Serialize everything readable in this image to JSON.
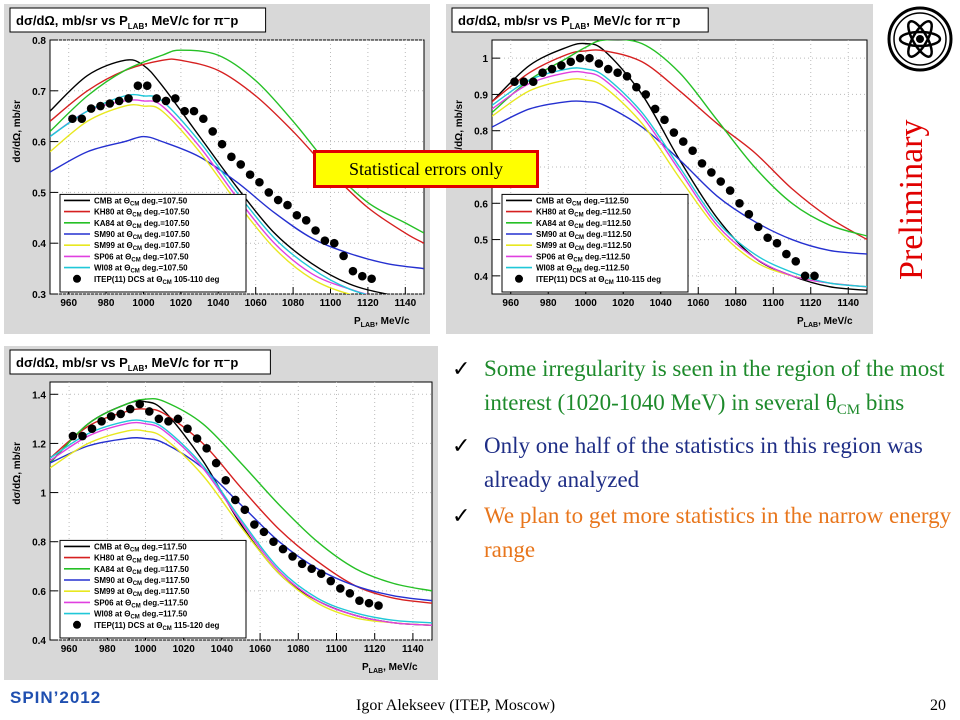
{
  "slide": {
    "stat_note": "Statistical errors only",
    "preliminary": "Preliminary",
    "bullets": [
      {
        "text": "Some irregularity is seen in the region of the most interest (1020-1040 MeV) in several θ",
        "sub": "CM",
        "tail": " bins",
        "color": "#1d8a2b"
      },
      {
        "text": "Only one half of the statistics in this region was already analyzed",
        "sub": "",
        "tail": "",
        "color": "#1f2e86"
      },
      {
        "text": "We plan to get more statistics in the narrow energy range",
        "sub": "",
        "tail": "",
        "color": "#e8761c"
      }
    ],
    "footer_left": "SPIN’2012",
    "footer_center": "Igor Alekseev (ITEP, Moscow)",
    "page_number": "20"
  },
  "chart_data": [
    {
      "type": "line",
      "title": "dσ/dΩ, mb/sr vs P",
      "title_sub": "LAB",
      "title_tail": ", MeV/c for π⁻p",
      "ylabel": "dσ/dΩ, mb/sr",
      "xlabel": "P",
      "xlabel_sub": "LAB",
      "xlabel_tail": ", MeV/c",
      "xlim": [
        950,
        1150
      ],
      "ylim": [
        0.3,
        0.8
      ],
      "xticks": [
        960,
        980,
        1000,
        1020,
        1040,
        1060,
        1080,
        1100,
        1120,
        1140
      ],
      "yticks": [
        0.3,
        0.4,
        0.5,
        0.6,
        0.7,
        0.8
      ],
      "ytick_labels": [
        "0.3",
        "0.4",
        "0.5",
        "0.6",
        "0.7",
        "0.8"
      ],
      "grid": true,
      "legend_position": "bottom-left",
      "series": [
        {
          "name": "CMB  at Θ",
          "angle_label": " deg.=107.50",
          "color": "#000000",
          "x": [
            950,
            970,
            990,
            1000,
            1010,
            1030,
            1050,
            1070,
            1090,
            1110,
            1130,
            1150
          ],
          "y": [
            0.66,
            0.73,
            0.76,
            0.75,
            0.71,
            0.61,
            0.51,
            0.42,
            0.36,
            0.32,
            0.3,
            0.29
          ]
        },
        {
          "name": "KH80  at Θ",
          "angle_label": " deg.=107.50",
          "color": "#d62020",
          "x": [
            950,
            970,
            990,
            1010,
            1020,
            1040,
            1060,
            1080,
            1100,
            1120,
            1140,
            1150
          ],
          "y": [
            0.64,
            0.7,
            0.74,
            0.76,
            0.76,
            0.74,
            0.69,
            0.62,
            0.54,
            0.47,
            0.42,
            0.4
          ]
        },
        {
          "name": "KA84  at Θ",
          "angle_label": " deg.=107.50",
          "color": "#26c026",
          "x": [
            950,
            970,
            990,
            1010,
            1020,
            1040,
            1060,
            1080,
            1100,
            1120,
            1140,
            1150
          ],
          "y": [
            0.62,
            0.69,
            0.74,
            0.77,
            0.78,
            0.77,
            0.72,
            0.64,
            0.55,
            0.48,
            0.44,
            0.42
          ]
        },
        {
          "name": "SM90  at Θ",
          "angle_label": " deg.=107.50",
          "color": "#2530d0",
          "x": [
            950,
            970,
            990,
            1000,
            1010,
            1030,
            1050,
            1070,
            1090,
            1110,
            1130,
            1150
          ],
          "y": [
            0.54,
            0.58,
            0.6,
            0.61,
            0.6,
            0.57,
            0.52,
            0.46,
            0.41,
            0.38,
            0.36,
            0.35
          ]
        },
        {
          "name": "SM99  at Θ",
          "angle_label": " deg.=107.50",
          "color": "#e8e820",
          "x": [
            950,
            970,
            990,
            1000,
            1010,
            1030,
            1050,
            1070,
            1090,
            1110,
            1130,
            1150
          ],
          "y": [
            0.58,
            0.64,
            0.67,
            0.67,
            0.66,
            0.58,
            0.48,
            0.39,
            0.33,
            0.3,
            0.29,
            0.28
          ]
        },
        {
          "name": "SP06  at Θ",
          "angle_label": " deg.=107.50",
          "color": "#e040e0",
          "x": [
            950,
            970,
            990,
            1000,
            1010,
            1030,
            1050,
            1070,
            1090,
            1110,
            1130,
            1150
          ],
          "y": [
            0.61,
            0.66,
            0.68,
            0.68,
            0.67,
            0.59,
            0.49,
            0.4,
            0.34,
            0.31,
            0.29,
            0.28
          ]
        },
        {
          "name": "WI08  at Θ",
          "angle_label": " deg.=107.50",
          "color": "#20c8d8",
          "x": [
            950,
            970,
            990,
            1000,
            1010,
            1030,
            1050,
            1070,
            1090,
            1110,
            1130,
            1150
          ],
          "y": [
            0.61,
            0.66,
            0.69,
            0.69,
            0.68,
            0.6,
            0.5,
            0.41,
            0.35,
            0.31,
            0.29,
            0.28
          ]
        }
      ],
      "points_label": "ITEP(11) DCS at Θ",
      "points_label_tail": " 105-110 deg",
      "points": {
        "x": [
          962,
          967,
          972,
          977,
          982,
          987,
          992,
          997,
          1002,
          1007,
          1012,
          1017,
          1022,
          1027,
          1032,
          1037,
          1042,
          1047,
          1052,
          1057,
          1062,
          1067,
          1072,
          1077,
          1082,
          1087,
          1092,
          1097,
          1102,
          1107,
          1112,
          1117,
          1122
        ],
        "y": [
          0.645,
          0.645,
          0.665,
          0.67,
          0.675,
          0.68,
          0.685,
          0.71,
          0.71,
          0.685,
          0.68,
          0.685,
          0.66,
          0.66,
          0.645,
          0.62,
          0.595,
          0.57,
          0.555,
          0.535,
          0.52,
          0.5,
          0.485,
          0.475,
          0.455,
          0.445,
          0.425,
          0.405,
          0.4,
          0.375,
          0.345,
          0.335,
          0.33
        ]
      }
    },
    {
      "type": "line",
      "title": "dσ/dΩ, mb/sr vs P",
      "title_sub": "LAB",
      "title_tail": ", MeV/c for π⁻p",
      "ylabel": "dσ/dΩ, mb/sr",
      "xlabel": "P",
      "xlabel_sub": "LAB",
      "xlabel_tail": ", MeV/c",
      "xlim": [
        950,
        1150
      ],
      "ylim": [
        0.35,
        1.05
      ],
      "xticks": [
        960,
        980,
        1000,
        1020,
        1040,
        1060,
        1080,
        1100,
        1120,
        1140
      ],
      "yticks": [
        0.4,
        0.5,
        0.6,
        0.7,
        0.8,
        0.9,
        1.0
      ],
      "ytick_labels": [
        "0.4",
        "0.5",
        "0.6",
        "0.7",
        "0.8",
        "0.9",
        "1"
      ],
      "grid": true,
      "legend_position": "bottom-left",
      "series": [
        {
          "name": "CMB  at Θ",
          "angle_label": " deg.=112.50",
          "color": "#000000",
          "x": [
            950,
            970,
            990,
            1000,
            1010,
            1030,
            1050,
            1070,
            1090,
            1110,
            1130,
            1150
          ],
          "y": [
            0.88,
            0.98,
            1.03,
            1.04,
            1.02,
            0.9,
            0.72,
            0.56,
            0.45,
            0.4,
            0.37,
            0.36
          ]
        },
        {
          "name": "KH80  at Θ",
          "angle_label": " deg.=112.50",
          "color": "#d62020",
          "x": [
            950,
            970,
            990,
            1000,
            1010,
            1030,
            1050,
            1070,
            1090,
            1110,
            1130,
            1150
          ],
          "y": [
            0.88,
            0.96,
            1.01,
            1.02,
            1.02,
            0.99,
            0.91,
            0.82,
            0.74,
            0.64,
            0.56,
            0.5
          ]
        },
        {
          "name": "KA84  at Θ",
          "angle_label": " deg.=112.50",
          "color": "#26c026",
          "x": [
            950,
            970,
            990,
            1000,
            1010,
            1030,
            1050,
            1070,
            1090,
            1110,
            1130,
            1150
          ],
          "y": [
            0.85,
            0.94,
            1.0,
            1.03,
            1.05,
            1.04,
            0.96,
            0.83,
            0.7,
            0.6,
            0.54,
            0.51
          ]
        },
        {
          "name": "SM90  at Θ",
          "angle_label": " deg.=112.50",
          "color": "#2530d0",
          "x": [
            950,
            970,
            990,
            1000,
            1010,
            1030,
            1050,
            1070,
            1090,
            1110,
            1130,
            1150
          ],
          "y": [
            0.81,
            0.86,
            0.88,
            0.88,
            0.87,
            0.81,
            0.72,
            0.62,
            0.55,
            0.5,
            0.47,
            0.46
          ]
        },
        {
          "name": "SM99  at Θ",
          "angle_label": " deg.=112.50",
          "color": "#e8e820",
          "x": [
            950,
            970,
            990,
            1000,
            1010,
            1030,
            1050,
            1070,
            1090,
            1110,
            1130,
            1150
          ],
          "y": [
            0.84,
            0.91,
            0.94,
            0.94,
            0.92,
            0.82,
            0.67,
            0.53,
            0.44,
            0.4,
            0.38,
            0.37
          ]
        },
        {
          "name": "SP06  at Θ",
          "angle_label": " deg.=112.50",
          "color": "#e040e0",
          "x": [
            950,
            970,
            990,
            1000,
            1010,
            1030,
            1050,
            1070,
            1090,
            1110,
            1130,
            1150
          ],
          "y": [
            0.86,
            0.93,
            0.96,
            0.96,
            0.94,
            0.84,
            0.69,
            0.54,
            0.45,
            0.4,
            0.38,
            0.37
          ]
        },
        {
          "name": "WI08  at Θ",
          "angle_label": " deg.=112.50",
          "color": "#20c8d8",
          "x": [
            950,
            970,
            990,
            1000,
            1010,
            1030,
            1050,
            1070,
            1090,
            1110,
            1130,
            1150
          ],
          "y": [
            0.87,
            0.94,
            0.97,
            0.97,
            0.95,
            0.85,
            0.7,
            0.55,
            0.46,
            0.41,
            0.38,
            0.37
          ]
        }
      ],
      "points_label": "ITEP(11) DCS at Θ",
      "points_label_tail": " 110-115 deg",
      "points": {
        "x": [
          962,
          967,
          972,
          977,
          982,
          987,
          992,
          997,
          1002,
          1007,
          1012,
          1017,
          1022,
          1027,
          1032,
          1037,
          1042,
          1047,
          1052,
          1057,
          1062,
          1067,
          1072,
          1077,
          1082,
          1087,
          1092,
          1097,
          1102,
          1107,
          1112,
          1117,
          1122
        ],
        "y": [
          0.935,
          0.935,
          0.935,
          0.96,
          0.97,
          0.98,
          0.99,
          1.0,
          1.0,
          0.985,
          0.97,
          0.96,
          0.95,
          0.92,
          0.9,
          0.86,
          0.83,
          0.795,
          0.77,
          0.745,
          0.71,
          0.685,
          0.66,
          0.635,
          0.6,
          0.57,
          0.535,
          0.505,
          0.49,
          0.46,
          0.44,
          0.4,
          0.4
        ]
      }
    },
    {
      "type": "line",
      "title": "dσ/dΩ, mb/sr vs P",
      "title_sub": "LAB",
      "title_tail": ", MeV/c for π⁻p",
      "ylabel": "dσ/dΩ, mb/sr",
      "xlabel": "P",
      "xlabel_sub": "LAB",
      "xlabel_tail": ", MeV/c",
      "xlim": [
        950,
        1150
      ],
      "ylim": [
        0.4,
        1.45
      ],
      "xticks": [
        960,
        980,
        1000,
        1020,
        1040,
        1060,
        1080,
        1100,
        1120,
        1140
      ],
      "yticks": [
        0.4,
        0.6,
        0.8,
        1.0,
        1.2,
        1.4
      ],
      "ytick_labels": [
        "0.4",
        "0.6",
        "0.8",
        "1",
        "1.2",
        "1.4"
      ],
      "grid": true,
      "legend_position": "bottom-left",
      "series": [
        {
          "name": "CMB  at Θ",
          "angle_label": " deg.=117.50",
          "color": "#000000",
          "x": [
            950,
            970,
            990,
            1000,
            1010,
            1030,
            1050,
            1070,
            1090,
            1110,
            1130,
            1150
          ],
          "y": [
            1.12,
            1.28,
            1.36,
            1.37,
            1.33,
            1.13,
            0.87,
            0.67,
            0.56,
            0.5,
            0.47,
            0.46
          ]
        },
        {
          "name": "KH80  at Θ",
          "angle_label": " deg.=117.50",
          "color": "#d62020",
          "x": [
            950,
            970,
            990,
            1000,
            1010,
            1030,
            1050,
            1070,
            1090,
            1110,
            1130,
            1150
          ],
          "y": [
            1.14,
            1.27,
            1.33,
            1.34,
            1.32,
            1.2,
            1.02,
            0.85,
            0.72,
            0.62,
            0.57,
            0.55
          ]
        },
        {
          "name": "KA84  at Θ",
          "angle_label": " deg.=117.50",
          "color": "#26c026",
          "x": [
            950,
            970,
            990,
            1000,
            1010,
            1030,
            1050,
            1070,
            1090,
            1110,
            1130,
            1150
          ],
          "y": [
            1.12,
            1.28,
            1.36,
            1.38,
            1.37,
            1.28,
            1.12,
            0.95,
            0.8,
            0.69,
            0.63,
            0.6
          ]
        },
        {
          "name": "SM90  at Θ",
          "angle_label": " deg.=117.50",
          "color": "#2530d0",
          "x": [
            950,
            970,
            990,
            1000,
            1010,
            1030,
            1050,
            1070,
            1090,
            1110,
            1130,
            1150
          ],
          "y": [
            1.12,
            1.19,
            1.22,
            1.22,
            1.2,
            1.1,
            0.95,
            0.8,
            0.69,
            0.62,
            0.58,
            0.56
          ]
        },
        {
          "name": "SM99  at Θ",
          "angle_label": " deg.=117.50",
          "color": "#e8e820",
          "x": [
            950,
            970,
            990,
            1000,
            1010,
            1030,
            1050,
            1070,
            1090,
            1110,
            1130,
            1150
          ],
          "y": [
            1.1,
            1.2,
            1.25,
            1.25,
            1.22,
            1.07,
            0.86,
            0.67,
            0.55,
            0.49,
            0.47,
            0.46
          ]
        },
        {
          "name": "SP06  at Θ",
          "angle_label": " deg.=117.50",
          "color": "#e040e0",
          "x": [
            950,
            970,
            990,
            1000,
            1010,
            1030,
            1050,
            1070,
            1090,
            1110,
            1130,
            1150
          ],
          "y": [
            1.13,
            1.23,
            1.28,
            1.28,
            1.25,
            1.1,
            0.88,
            0.68,
            0.56,
            0.5,
            0.47,
            0.46
          ]
        },
        {
          "name": "WI08  at Θ",
          "angle_label": " deg.=117.50",
          "color": "#20c8d8",
          "x": [
            950,
            970,
            990,
            1000,
            1010,
            1030,
            1050,
            1070,
            1090,
            1110,
            1130,
            1150
          ],
          "y": [
            1.14,
            1.24,
            1.29,
            1.29,
            1.26,
            1.11,
            0.89,
            0.69,
            0.57,
            0.51,
            0.48,
            0.47
          ]
        }
      ],
      "points_label": "ITEP(11) DCS at Θ",
      "points_label_tail": " 115-120 deg",
      "points": {
        "x": [
          962,
          967,
          972,
          977,
          982,
          987,
          992,
          997,
          1002,
          1007,
          1012,
          1017,
          1022,
          1027,
          1032,
          1037,
          1042,
          1047,
          1052,
          1057,
          1062,
          1067,
          1072,
          1077,
          1082,
          1087,
          1092,
          1097,
          1102,
          1107,
          1112,
          1117,
          1122
        ],
        "y": [
          1.23,
          1.23,
          1.26,
          1.29,
          1.31,
          1.32,
          1.34,
          1.36,
          1.33,
          1.3,
          1.29,
          1.3,
          1.26,
          1.22,
          1.18,
          1.12,
          1.05,
          0.97,
          0.93,
          0.87,
          0.84,
          0.8,
          0.77,
          0.74,
          0.71,
          0.69,
          0.67,
          0.64,
          0.61,
          0.59,
          0.56,
          0.55,
          0.54
        ]
      }
    }
  ]
}
